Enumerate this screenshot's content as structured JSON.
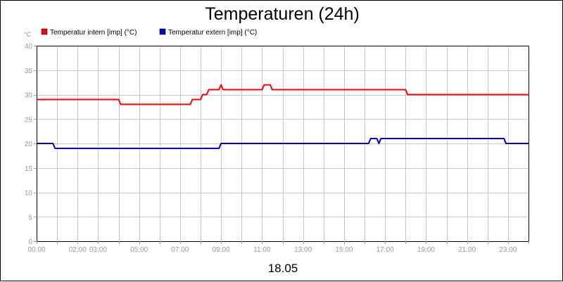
{
  "chart_data": {
    "type": "line",
    "title": "Temperaturen (24h)",
    "ylabel": "°C",
    "xlabel": "18.05",
    "ylim": [
      0,
      40
    ],
    "xlim": [
      0,
      24
    ],
    "yticks": [
      0,
      5,
      10,
      15,
      20,
      25,
      30,
      35,
      40
    ],
    "xticks": [
      {
        "x": 0,
        "label": "00:00"
      },
      {
        "x": 2,
        "label": "02:00"
      },
      {
        "x": 3,
        "label": "03:00"
      },
      {
        "x": 5,
        "label": "05:00"
      },
      {
        "x": 7,
        "label": "07:00"
      },
      {
        "x": 9,
        "label": "09:00"
      },
      {
        "x": 11,
        "label": "11:00"
      },
      {
        "x": 13,
        "label": "13:00"
      },
      {
        "x": 15,
        "label": "15:00"
      },
      {
        "x": 17,
        "label": "17:00"
      },
      {
        "x": 19,
        "label": "19:00"
      },
      {
        "x": 21,
        "label": "21:00"
      },
      {
        "x": 23,
        "label": "23:00"
      }
    ],
    "grid": true,
    "legend_position": "top-left",
    "series": [
      {
        "name": "Temperatur intern [imp] (°C)",
        "color": "#ff0000",
        "x": [
          0,
          4.0,
          4.1,
          7.5,
          7.6,
          8.0,
          8.1,
          8.3,
          8.4,
          8.9,
          9.0,
          9.1,
          11.0,
          11.1,
          11.4,
          11.5,
          18.0,
          18.1,
          24
        ],
        "y": [
          29,
          29,
          28,
          28,
          29,
          29,
          30,
          30,
          31,
          31,
          32,
          31,
          31,
          32,
          32,
          31,
          31,
          30,
          30
        ]
      },
      {
        "name": "Temperatur extern [imp] (°C)",
        "color": "#0000cc",
        "x": [
          0,
          0.8,
          0.9,
          8.9,
          9.0,
          16.2,
          16.3,
          16.6,
          16.7,
          16.8,
          22.8,
          22.9,
          24
        ],
        "y": [
          20,
          20,
          19,
          19,
          20,
          20,
          21,
          21,
          20,
          21,
          21,
          20,
          20
        ]
      }
    ]
  }
}
